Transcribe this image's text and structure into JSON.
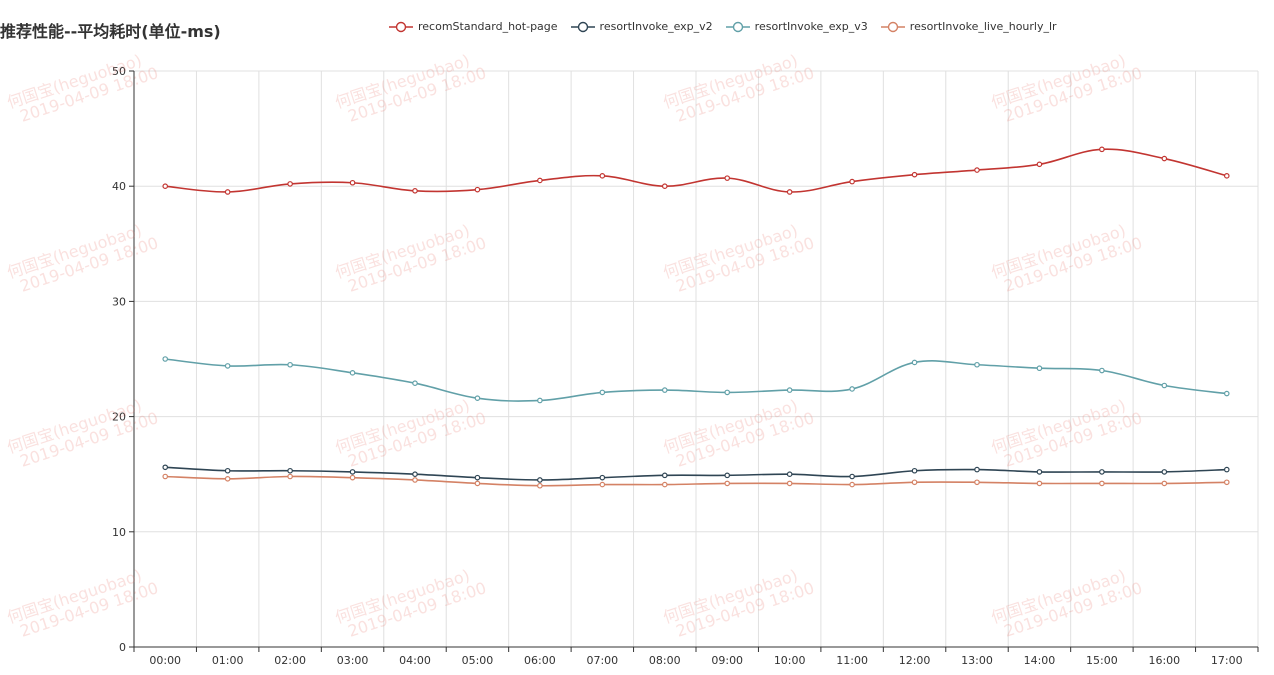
{
  "chart_data": {
    "type": "line",
    "title": "推荐性能--平均耗时(单位-ms)",
    "categories": [
      "00:00",
      "01:00",
      "02:00",
      "03:00",
      "04:00",
      "05:00",
      "06:00",
      "07:00",
      "08:00",
      "09:00",
      "10:00",
      "11:00",
      "12:00",
      "13:00",
      "14:00",
      "15:00",
      "16:00",
      "17:00"
    ],
    "ylim": [
      0,
      50
    ],
    "yticks": [
      "0",
      "10",
      "20",
      "30",
      "40",
      "50"
    ],
    "grid": true,
    "legend_position": "top",
    "smooth": true,
    "series": [
      {
        "name": "recomStandard_hot-page",
        "color": "#c23531",
        "values": [
          40.0,
          39.5,
          40.2,
          40.3,
          39.6,
          39.7,
          40.5,
          40.9,
          40.0,
          40.7,
          39.5,
          40.4,
          41.0,
          41.4,
          41.9,
          43.2,
          42.4,
          40.9
        ]
      },
      {
        "name": "resortInvoke_exp_v2",
        "color": "#2f4554",
        "values": [
          15.6,
          15.3,
          15.3,
          15.2,
          15.0,
          14.7,
          14.5,
          14.7,
          14.9,
          14.9,
          15.0,
          14.8,
          15.3,
          15.4,
          15.2,
          15.2,
          15.2,
          15.4
        ]
      },
      {
        "name": "resortInvoke_exp_v3",
        "color": "#61a0a8",
        "values": [
          25.0,
          24.4,
          24.5,
          23.8,
          22.9,
          21.6,
          21.4,
          22.1,
          22.3,
          22.1,
          22.3,
          22.4,
          24.7,
          24.5,
          24.2,
          24.0,
          22.7,
          22.0
        ]
      },
      {
        "name": "resortInvoke_live_hourly_lr",
        "color": "#d48265",
        "values": [
          14.8,
          14.6,
          14.8,
          14.7,
          14.5,
          14.2,
          14.0,
          14.1,
          14.1,
          14.2,
          14.2,
          14.1,
          14.3,
          14.3,
          14.2,
          14.2,
          14.2,
          14.3
        ]
      }
    ]
  },
  "watermark": {
    "line1": "何国宝(heguobao)",
    "line2": "2019-04-09 18:00"
  }
}
